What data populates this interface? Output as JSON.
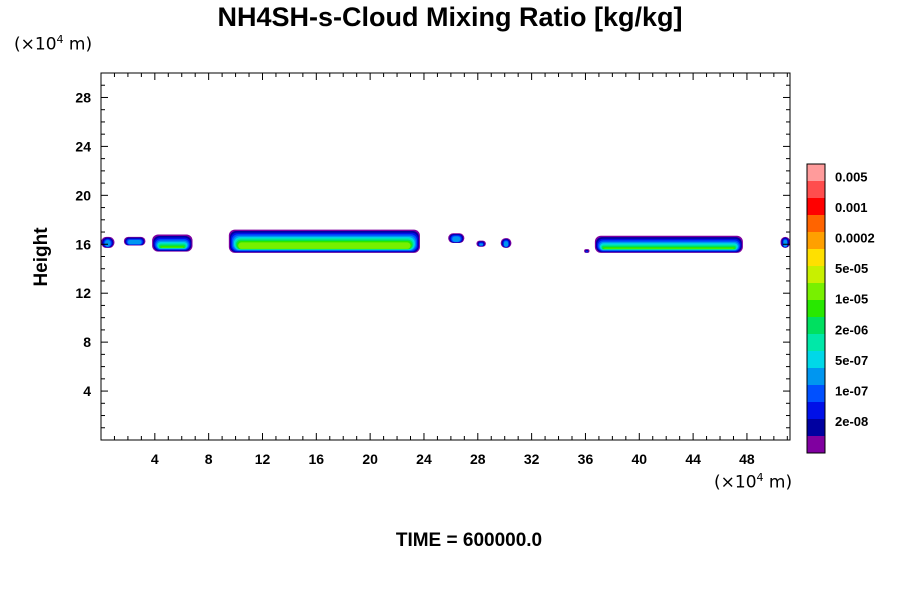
{
  "chart_data": {
    "type": "contour",
    "title": "NH4SH-s-Cloud Mixing Ratio [kg/kg]",
    "xlabel": "",
    "ylabel": "Height",
    "x_unit_label": {
      "prefix": "(×10",
      "exponent": "4",
      "suffix": " m)"
    },
    "y_unit_label": {
      "prefix": "(×10",
      "exponent": "4",
      "suffix": " m)"
    },
    "xlim": [
      0,
      51.2
    ],
    "ylim": [
      0,
      30
    ],
    "x_ticks": [
      4,
      8,
      12,
      16,
      20,
      24,
      28,
      32,
      36,
      40,
      44,
      48
    ],
    "y_ticks": [
      4,
      8,
      12,
      16,
      20,
      24,
      28
    ],
    "grid": false,
    "colorbar": {
      "labels": [
        "0.005",
        "0.001",
        "0.0002",
        "5e-05",
        "1e-05",
        "2e-06",
        "5e-07",
        "1e-07",
        "2e-08"
      ],
      "colors_top_to_bottom": [
        "#ff9b9b",
        "#ff4d4d",
        "#ff0000",
        "#ff6400",
        "#ffa000",
        "#ffe000",
        "#c8f000",
        "#78f000",
        "#28e800",
        "#00e060",
        "#00e8a8",
        "#00d8e8",
        "#0096f0",
        "#0050ff",
        "#0010e8",
        "#0000a0",
        "#8000a0"
      ]
    },
    "cloud_regions": [
      {
        "x": [
          0,
          1
        ],
        "y_base": 15.7,
        "y_top": 16.6,
        "core": false
      },
      {
        "x": [
          1.7,
          3.3
        ],
        "y_base": 15.9,
        "y_top": 16.6,
        "core": false
      },
      {
        "x": [
          3.8,
          6.8
        ],
        "y_base": 15.4,
        "y_top": 16.8,
        "core": true
      },
      {
        "x": [
          9.5,
          23.7
        ],
        "y_base": 15.3,
        "y_top": 17.2,
        "core": true
      },
      {
        "x": [
          25.8,
          27.0
        ],
        "y_base": 16.1,
        "y_top": 16.9,
        "core": false
      },
      {
        "x": [
          27.9,
          28.6
        ],
        "y_base": 15.8,
        "y_top": 16.3,
        "core": false
      },
      {
        "x": [
          29.7,
          30.5
        ],
        "y_base": 15.7,
        "y_top": 16.5,
        "core": false
      },
      {
        "x": [
          35.9,
          36.3
        ],
        "y_base": 15.3,
        "y_top": 15.6,
        "core": false
      },
      {
        "x": [
          36.7,
          47.7
        ],
        "y_base": 15.3,
        "y_top": 16.7,
        "core": true
      },
      {
        "x": [
          50.5,
          51.2
        ],
        "y_base": 15.7,
        "y_top": 16.6,
        "core": false
      }
    ]
  },
  "time": {
    "label": "TIME = 600000.0"
  }
}
